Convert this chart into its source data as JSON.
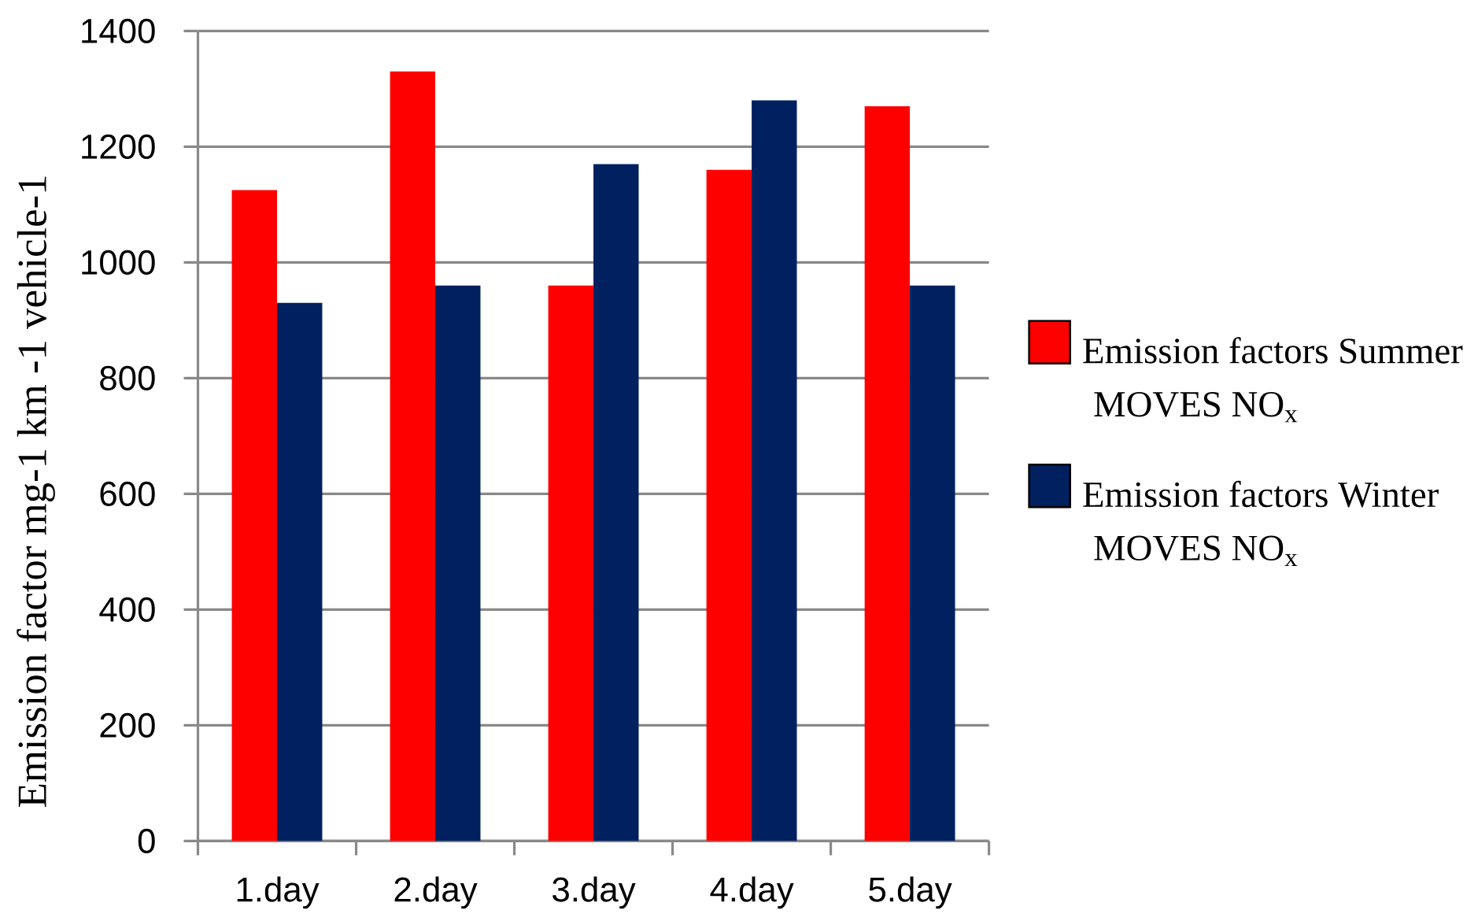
{
  "chart_data": {
    "type": "bar",
    "categories": [
      "1.day",
      "2.day",
      "3.day",
      "4.day",
      "5.day"
    ],
    "ylabel": "Emission factor  mg-1 km -1 vehicle-1",
    "series": [
      {
        "name": "Emission factors Summer MOVES NO$_{x}$",
        "color": "#ff0000",
        "values": [
          1125,
          1330,
          960,
          1160,
          1270
        ]
      },
      {
        "name": "Emission factors Winter MOVES NO$_{x}$",
        "color": "#002060",
        "values": [
          930,
          960,
          1170,
          1280,
          960
        ]
      }
    ],
    "ylim": [
      0,
      1400
    ],
    "yticks": [
      0,
      200,
      400,
      600,
      800,
      1000,
      1200,
      1400
    ],
    "grid": "y",
    "legend": "right"
  }
}
